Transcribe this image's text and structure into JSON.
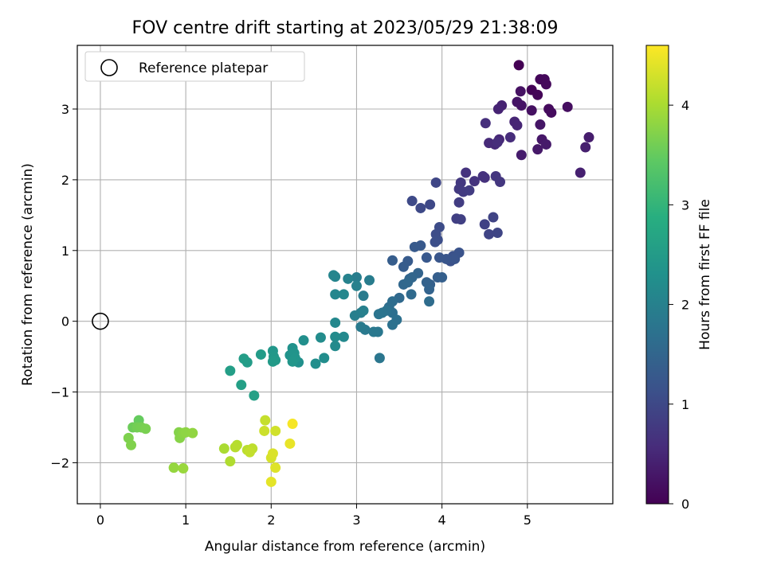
{
  "chart_data": {
    "type": "scatter",
    "title": "FOV centre drift starting at 2023/05/29 21:38:09",
    "xlabel": "Angular distance from reference (arcmin)",
    "ylabel": "Rotation from reference (arcmin)",
    "xlim": [
      -0.27,
      6.0
    ],
    "ylim": [
      -2.58,
      3.9
    ],
    "xticks": [
      0,
      1,
      2,
      3,
      4,
      5
    ],
    "yticks": [
      -2,
      -1,
      0,
      1,
      2,
      3
    ],
    "grid": true,
    "legend": {
      "position": "top-left",
      "entries": [
        "Reference platepar"
      ]
    },
    "reference_point": {
      "x": 0,
      "y": 0
    },
    "colorbar": {
      "label": "Hours from first FF file",
      "colormap": "viridis",
      "range": [
        0,
        4.6
      ],
      "ticks": [
        0,
        1,
        2,
        3,
        4
      ]
    },
    "points": [
      [
        4.9,
        3.62,
        0.0
      ],
      [
        5.05,
        3.27,
        0.03
      ],
      [
        5.12,
        3.2,
        0.05
      ],
      [
        5.15,
        3.42,
        0.07
      ],
      [
        5.2,
        3.42,
        0.09
      ],
      [
        5.22,
        3.35,
        0.11
      ],
      [
        5.25,
        3.0,
        0.13
      ],
      [
        5.28,
        2.95,
        0.15
      ],
      [
        5.47,
        3.03,
        0.17
      ],
      [
        5.05,
        2.98,
        0.19
      ],
      [
        4.92,
        3.25,
        0.21
      ],
      [
        4.93,
        3.05,
        0.23
      ],
      [
        4.88,
        3.1,
        0.25
      ],
      [
        5.15,
        2.78,
        0.27
      ],
      [
        5.17,
        2.57,
        0.29
      ],
      [
        5.12,
        2.43,
        0.31
      ],
      [
        5.22,
        2.5,
        0.33
      ],
      [
        4.93,
        2.35,
        0.35
      ],
      [
        5.72,
        2.6,
        0.37
      ],
      [
        5.68,
        2.46,
        0.39
      ],
      [
        5.62,
        2.1,
        0.41
      ],
      [
        4.7,
        3.05,
        0.43
      ],
      [
        4.66,
        3.0,
        0.45
      ],
      [
        4.85,
        2.82,
        0.47
      ],
      [
        4.88,
        2.77,
        0.49
      ],
      [
        4.67,
        2.57,
        0.51
      ],
      [
        4.62,
        2.5,
        0.53
      ],
      [
        4.55,
        2.52,
        0.55
      ],
      [
        4.8,
        2.6,
        0.57
      ],
      [
        4.65,
        2.53,
        0.59
      ],
      [
        4.51,
        2.8,
        0.61
      ],
      [
        4.5,
        2.03,
        0.63
      ],
      [
        4.48,
        2.05,
        0.65
      ],
      [
        4.28,
        2.1,
        0.67
      ],
      [
        4.38,
        1.98,
        0.69
      ],
      [
        4.63,
        2.05,
        0.71
      ],
      [
        4.68,
        1.97,
        0.73
      ],
      [
        4.22,
        1.96,
        0.75
      ],
      [
        4.2,
        1.87,
        0.77
      ],
      [
        4.25,
        1.83,
        0.79
      ],
      [
        4.32,
        1.85,
        0.81
      ],
      [
        4.2,
        1.68,
        0.83
      ],
      [
        4.17,
        1.45,
        0.85
      ],
      [
        4.22,
        1.44,
        0.87
      ],
      [
        4.5,
        1.37,
        0.89
      ],
      [
        4.6,
        1.47,
        0.91
      ],
      [
        4.55,
        1.23,
        0.93
      ],
      [
        4.65,
        1.25,
        0.95
      ],
      [
        3.93,
        1.96,
        0.97
      ],
      [
        3.86,
        1.65,
        0.99
      ],
      [
        3.75,
        1.6,
        1.01
      ],
      [
        3.65,
        1.7,
        1.03
      ],
      [
        3.97,
        1.33,
        1.05
      ],
      [
        3.93,
        1.23,
        1.07
      ],
      [
        3.95,
        1.15,
        1.09
      ],
      [
        3.92,
        1.12,
        1.11
      ],
      [
        4.1,
        0.85,
        1.13
      ],
      [
        4.13,
        0.92,
        1.15
      ],
      [
        4.2,
        0.97,
        1.17
      ],
      [
        4.15,
        0.88,
        1.19
      ],
      [
        4.05,
        0.88,
        1.21
      ],
      [
        3.97,
        0.9,
        1.23
      ],
      [
        3.82,
        0.9,
        1.25
      ],
      [
        3.75,
        1.07,
        1.27
      ],
      [
        3.68,
        1.05,
        1.29
      ],
      [
        3.6,
        0.85,
        1.31
      ],
      [
        3.55,
        0.77,
        1.33
      ],
      [
        3.42,
        0.86,
        1.35
      ],
      [
        3.95,
        0.62,
        1.37
      ],
      [
        4.0,
        0.62,
        1.39
      ],
      [
        3.86,
        0.52,
        1.41
      ],
      [
        3.82,
        0.55,
        1.43
      ],
      [
        3.85,
        0.45,
        1.45
      ],
      [
        3.72,
        0.68,
        1.47
      ],
      [
        3.62,
        0.6,
        1.49
      ],
      [
        3.65,
        0.62,
        1.51
      ],
      [
        3.55,
        0.52,
        1.53
      ],
      [
        3.6,
        0.55,
        1.55
      ],
      [
        3.5,
        0.33,
        1.57
      ],
      [
        3.64,
        0.38,
        1.59
      ],
      [
        3.85,
        0.28,
        1.61
      ],
      [
        3.42,
        0.28,
        1.63
      ],
      [
        3.38,
        0.2,
        1.65
      ],
      [
        3.42,
        0.12,
        1.67
      ],
      [
        3.47,
        0.02,
        1.69
      ],
      [
        3.42,
        -0.05,
        1.71
      ],
      [
        3.35,
        0.15,
        1.73
      ],
      [
        3.3,
        0.12,
        1.75
      ],
      [
        3.26,
        0.1,
        1.77
      ],
      [
        3.27,
        -0.52,
        1.79
      ],
      [
        3.25,
        -0.15,
        1.81
      ],
      [
        3.2,
        -0.15,
        1.83
      ],
      [
        3.1,
        -0.12,
        1.85
      ],
      [
        3.05,
        -0.08,
        1.87
      ],
      [
        3.08,
        0.36,
        1.89
      ],
      [
        3.15,
        0.58,
        1.91
      ],
      [
        3.0,
        0.62,
        1.93
      ],
      [
        3.05,
        0.12,
        1.95
      ],
      [
        2.98,
        0.08,
        1.97
      ],
      [
        3.08,
        0.15,
        1.99
      ],
      [
        3.0,
        0.5,
        2.01
      ],
      [
        2.9,
        0.6,
        2.03
      ],
      [
        2.75,
        0.63,
        2.05
      ],
      [
        2.73,
        0.65,
        2.07
      ],
      [
        2.75,
        0.38,
        2.09
      ],
      [
        2.85,
        0.38,
        2.11
      ],
      [
        2.75,
        -0.02,
        2.13
      ],
      [
        2.85,
        -0.22,
        2.15
      ],
      [
        2.75,
        -0.35,
        2.17
      ],
      [
        2.75,
        -0.22,
        2.19
      ],
      [
        2.58,
        -0.23,
        2.21
      ],
      [
        2.62,
        -0.52,
        2.23
      ],
      [
        2.52,
        -0.6,
        2.25
      ],
      [
        2.38,
        -0.27,
        2.27
      ],
      [
        2.32,
        -0.58,
        2.29
      ],
      [
        2.25,
        -0.38,
        2.31
      ],
      [
        2.22,
        -0.48,
        2.33
      ],
      [
        2.27,
        -0.45,
        2.35
      ],
      [
        2.28,
        -0.52,
        2.37
      ],
      [
        2.25,
        -0.57,
        2.39
      ],
      [
        2.02,
        -0.42,
        2.41
      ],
      [
        2.03,
        -0.5,
        2.43
      ],
      [
        2.05,
        -0.55,
        2.45
      ],
      [
        2.02,
        -0.57,
        2.47
      ],
      [
        1.88,
        -0.47,
        2.49
      ],
      [
        1.72,
        -0.58,
        2.51
      ],
      [
        1.68,
        -0.53,
        2.53
      ],
      [
        1.52,
        -0.7,
        2.55
      ],
      [
        1.65,
        -0.9,
        2.57
      ],
      [
        1.8,
        -1.05,
        2.59
      ],
      [
        0.45,
        -1.4,
        3.5
      ],
      [
        0.38,
        -1.5,
        3.55
      ],
      [
        0.43,
        -1.5,
        3.6
      ],
      [
        0.48,
        -1.5,
        3.62
      ],
      [
        0.53,
        -1.52,
        3.65
      ],
      [
        0.33,
        -1.65,
        3.68
      ],
      [
        0.36,
        -1.75,
        3.7
      ],
      [
        0.92,
        -1.57,
        3.73
      ],
      [
        0.93,
        -1.65,
        3.75
      ],
      [
        0.97,
        -1.58,
        3.78
      ],
      [
        1.0,
        -1.57,
        3.8
      ],
      [
        1.08,
        -1.58,
        3.82
      ],
      [
        0.86,
        -2.07,
        3.85
      ],
      [
        0.97,
        -2.08,
        3.88
      ],
      [
        1.45,
        -1.8,
        4.0
      ],
      [
        1.52,
        -1.98,
        4.05
      ],
      [
        1.6,
        -1.75,
        4.08
      ],
      [
        1.58,
        -1.78,
        4.1
      ],
      [
        1.72,
        -1.82,
        4.12
      ],
      [
        1.78,
        -1.8,
        4.15
      ],
      [
        1.75,
        -1.85,
        4.18
      ],
      [
        1.93,
        -1.4,
        4.2
      ],
      [
        1.92,
        -1.55,
        4.25
      ],
      [
        2.05,
        -1.55,
        4.28
      ],
      [
        2.0,
        -1.93,
        4.32
      ],
      [
        2.02,
        -1.87,
        4.35
      ],
      [
        2.05,
        -2.07,
        4.38
      ],
      [
        2.0,
        -2.27,
        4.42
      ],
      [
        2.22,
        -1.73,
        4.45
      ],
      [
        2.25,
        -1.45,
        4.55
      ]
    ]
  }
}
